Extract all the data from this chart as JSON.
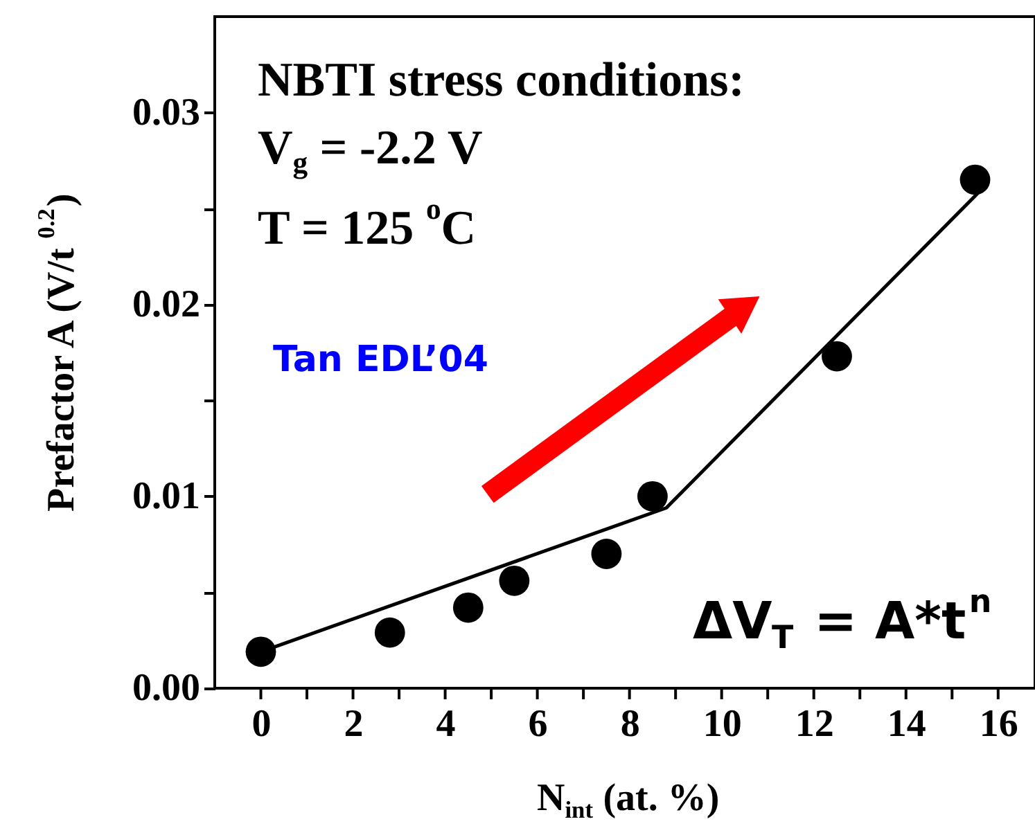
{
  "chart_data": {
    "type": "scatter",
    "xlabel": "N$_{int}$ (at. %)",
    "ylabel": "Prefactor A (V/t$^{0.2}$)",
    "series": [
      {
        "color": "#000000",
        "marker": "circle",
        "x": [
          0,
          2.8,
          4.5,
          5.5,
          7.5,
          8.5,
          12.5,
          15.5
        ],
        "values": [
          0.0019,
          0.0029,
          0.0042,
          0.0056,
          0.007,
          0.01,
          0.0173,
          0.0265
        ]
      },
      {
        "type": "line",
        "color": "#000000",
        "marker": "none",
        "line_style": "solid",
        "x": [
          0,
          8.8,
          15.6
        ],
        "values": [
          0.0019,
          0.0094,
          0.0259
        ]
      }
    ],
    "xlim": [
      -1,
      16.8
    ],
    "ylim": [
      0,
      0.035
    ],
    "xticks": [
      0,
      {
        "value": 1,
        "label": null
      },
      2,
      {
        "value": 3,
        "label": null
      },
      4,
      {
        "value": 5,
        "label": null
      },
      6,
      {
        "value": 7,
        "label": null
      },
      8,
      {
        "value": 9,
        "label": null
      },
      10,
      {
        "value": 11,
        "label": null
      },
      12,
      {
        "value": 13,
        "label": null
      },
      14,
      {
        "value": 15,
        "label": null
      },
      16
    ],
    "yticks": [
      {
        "value": 0,
        "label": "0.00"
      },
      {
        "value": 0.005,
        "label": null
      },
      {
        "value": 0.01,
        "label": "0.01"
      },
      {
        "value": 0.015,
        "label": null
      },
      {
        "value": 0.02,
        "label": "0.02"
      },
      {
        "value": 0.025,
        "label": null
      },
      {
        "value": 0.03,
        "label": "0.03"
      }
    ],
    "annotations": [
      "NBTI stress conditions:",
      "V$_{g}$ = -2.2 V",
      "T = 125 $^{o}$C",
      "Tan EDL’04",
      "ΔV$_{T}$ = A*t$^{n}$"
    ],
    "grid": false
  }
}
